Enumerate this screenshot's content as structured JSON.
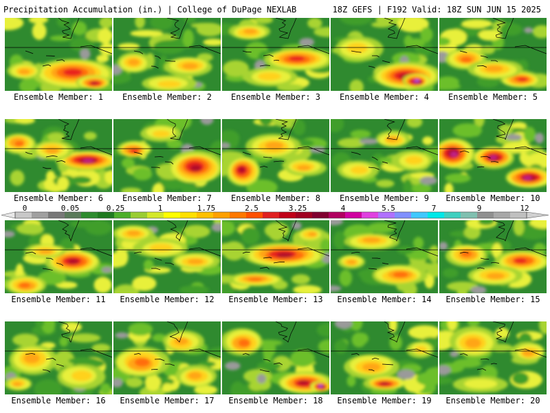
{
  "header": {
    "title_left": "Precipitation Accumulation (in.) | College of DuPage NEXLAB",
    "title_right": "18Z GEFS | F192 Valid: 18Z SUN JUN 15 2025"
  },
  "members": [
    {
      "label": "Ensemble Member: 1"
    },
    {
      "label": "Ensemble Member: 2"
    },
    {
      "label": "Ensemble Member: 3"
    },
    {
      "label": "Ensemble Member: 4"
    },
    {
      "label": "Ensemble Member: 5"
    },
    {
      "label": "Ensemble Member: 6"
    },
    {
      "label": "Ensemble Member: 7"
    },
    {
      "label": "Ensemble Member: 8"
    },
    {
      "label": "Ensemble Member: 9"
    },
    {
      "label": "Ensemble Member: 10"
    },
    {
      "label": "Ensemble Member: 11"
    },
    {
      "label": "Ensemble Member: 12"
    },
    {
      "label": "Ensemble Member: 13"
    },
    {
      "label": "Ensemble Member: 14"
    },
    {
      "label": "Ensemble Member: 15"
    },
    {
      "label": "Ensemble Member: 16"
    },
    {
      "label": "Ensemble Member: 17"
    },
    {
      "label": "Ensemble Member: 18"
    },
    {
      "label": "Ensemble Member: 19"
    },
    {
      "label": "Ensemble Member: 20"
    }
  ],
  "colorbar": {
    "tick_labels": [
      "0",
      "0.05",
      "0.25",
      "1",
      "1.75",
      "2.5",
      "3.25",
      "4",
      "5.5",
      "7",
      "9",
      "12"
    ],
    "colors": [
      "#c8c8c8",
      "#a0a0a0",
      "#787878",
      "#5a7a5a",
      "#2e8b2e",
      "#1f7a1f",
      "#4caf2a",
      "#9acd32",
      "#d4e82a",
      "#ffff00",
      "#ffe000",
      "#ffc000",
      "#ffa000",
      "#ff7800",
      "#ff5000",
      "#e02020",
      "#c00018",
      "#a00020",
      "#800030",
      "#b00060",
      "#d000a0",
      "#e040e0",
      "#b070ff",
      "#8090ff",
      "#40c8ff",
      "#00e8e8",
      "#40d0c0",
      "#80c0b0",
      "#909090",
      "#a8a8a8",
      "#c0c0c0"
    ]
  }
}
